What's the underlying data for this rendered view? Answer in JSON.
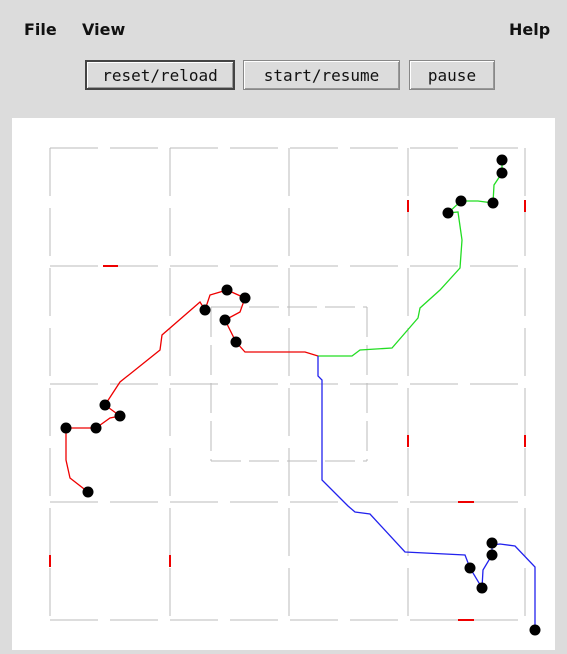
{
  "menu": {
    "items": [
      "File",
      "View"
    ],
    "help": "Help"
  },
  "toolbar": {
    "buttons": [
      "reset/reload",
      "start/resume",
      "pause"
    ]
  }
}
